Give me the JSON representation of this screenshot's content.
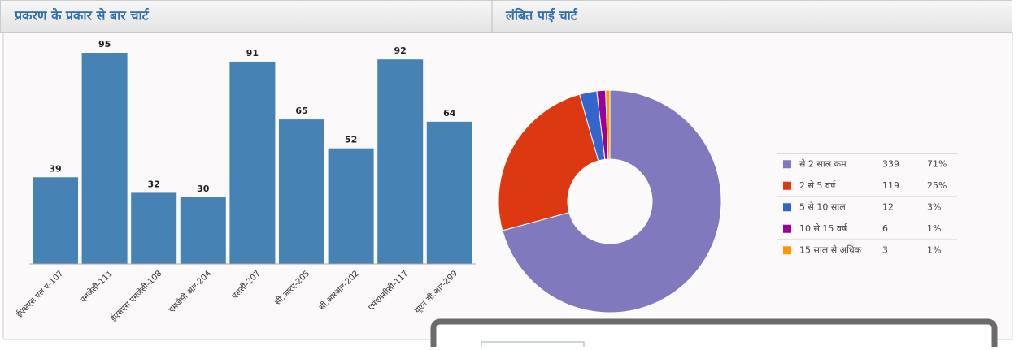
{
  "chart_data": [
    {
      "type": "bar",
      "title": "प्रकरण के प्रकार से बार चार्ट",
      "categories": [
        "ईएसएस एल ए-107",
        "एमजेसी-111",
        "ईएसएस एमजेसी-108",
        "एमजेसी आर-204",
        "एससी-207",
        "सी.आरए-205",
        "सी.आरआर-202",
        "एमएमसीसी-117",
        "यूएन सी.आर-299"
      ],
      "values": [
        39,
        95,
        32,
        30,
        91,
        65,
        52,
        92,
        64
      ],
      "color": "#4682b4"
    },
    {
      "type": "pie",
      "title": "लंबित पाई चार्ट",
      "categories": [
        "से 2 साल कम",
        "2 से 5 वर्ष",
        "5 से 10 साल",
        "10 से 15 वर्ष",
        "15 साल से अधिक"
      ],
      "values": [
        339,
        119,
        12,
        6,
        3
      ],
      "value_labels": [
        "71%",
        "25%",
        "3%",
        "1%",
        "1%"
      ],
      "colors": [
        "#8079bd",
        "#dc3912",
        "#3366cc",
        "#990099",
        "#ff9900"
      ]
    }
  ]
}
